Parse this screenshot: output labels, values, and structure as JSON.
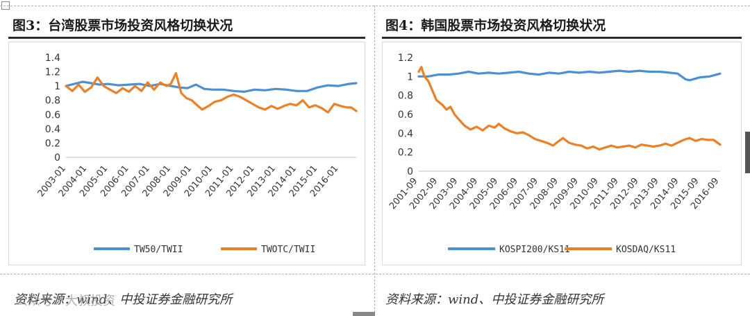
{
  "page": {
    "watermark": "公众号：大叔投资",
    "panels": [
      {
        "title": "图3：台湾股票市场投资风格切换状况",
        "source": "资料来源：wind、中投证券金融研究所"
      },
      {
        "title": "图4：韩国股票市场投资风格切换状况",
        "source": "资料来源：wind、中投证券金融研究所"
      }
    ]
  },
  "colors": {
    "blue": "#4A90D9",
    "orange": "#F07F22"
  },
  "chart_data": [
    {
      "type": "line",
      "title": "图3：台湾股票市场投资风格切换状况",
      "x": [
        "2003-01",
        "2004-01",
        "2005-01",
        "2006-01",
        "2007-01",
        "2008-01",
        "2009-01",
        "2010-01",
        "2011-01",
        "2012-01",
        "2013-01",
        "2014-01",
        "2015-01",
        "2016-01"
      ],
      "x_range": [
        2003.0,
        2016.85
      ],
      "ylim": [
        0,
        1.4
      ],
      "yticks": [
        0,
        0.2,
        0.4,
        0.6,
        0.8,
        1,
        1.2,
        1.4
      ],
      "ytick_labels": [
        "0",
        "0.2",
        "0.4",
        "0.6",
        "0.8",
        "1",
        "1.2",
        "1.4"
      ],
      "grid": false,
      "legend": "bottom",
      "series": [
        {
          "name": "TW50/TWII",
          "color": "#4A90D9",
          "points": [
            [
              2003.0,
              1.0
            ],
            [
              2003.4,
              1.03
            ],
            [
              2003.8,
              1.06
            ],
            [
              2004.2,
              1.04
            ],
            [
              2004.6,
              1.02
            ],
            [
              2005.0,
              1.03
            ],
            [
              2005.5,
              1.01
            ],
            [
              2006.0,
              1.02
            ],
            [
              2006.5,
              1.03
            ],
            [
              2007.0,
              1.0
            ],
            [
              2007.5,
              1.03
            ],
            [
              2008.0,
              1.0
            ],
            [
              2008.4,
              0.98
            ],
            [
              2008.8,
              0.97
            ],
            [
              2009.2,
              1.02
            ],
            [
              2009.6,
              0.96
            ],
            [
              2010.0,
              0.95
            ],
            [
              2010.5,
              0.95
            ],
            [
              2011.0,
              0.93
            ],
            [
              2011.5,
              0.92
            ],
            [
              2012.0,
              0.95
            ],
            [
              2012.5,
              0.94
            ],
            [
              2013.0,
              0.96
            ],
            [
              2013.5,
              0.95
            ],
            [
              2014.0,
              0.93
            ],
            [
              2014.5,
              0.93
            ],
            [
              2015.0,
              0.98
            ],
            [
              2015.5,
              1.01
            ],
            [
              2016.0,
              1.0
            ],
            [
              2016.5,
              1.03
            ],
            [
              2016.85,
              1.04
            ]
          ]
        },
        {
          "name": "TWOTC/TWII",
          "color": "#F07F22",
          "points": [
            [
              2003.0,
              1.0
            ],
            [
              2003.3,
              0.93
            ],
            [
              2003.6,
              1.02
            ],
            [
              2003.9,
              0.92
            ],
            [
              2004.2,
              0.98
            ],
            [
              2004.5,
              1.12
            ],
            [
              2004.8,
              1.0
            ],
            [
              2005.1,
              0.95
            ],
            [
              2005.4,
              0.9
            ],
            [
              2005.7,
              0.97
            ],
            [
              2006.0,
              0.92
            ],
            [
              2006.3,
              1.0
            ],
            [
              2006.6,
              0.93
            ],
            [
              2006.9,
              1.05
            ],
            [
              2007.2,
              0.95
            ],
            [
              2007.5,
              1.05
            ],
            [
              2007.8,
              1.0
            ],
            [
              2008.0,
              1.03
            ],
            [
              2008.25,
              1.18
            ],
            [
              2008.5,
              0.9
            ],
            [
              2008.75,
              0.83
            ],
            [
              2009.0,
              0.8
            ],
            [
              2009.3,
              0.72
            ],
            [
              2009.5,
              0.67
            ],
            [
              2009.8,
              0.72
            ],
            [
              2010.1,
              0.78
            ],
            [
              2010.4,
              0.8
            ],
            [
              2010.7,
              0.85
            ],
            [
              2011.0,
              0.88
            ],
            [
              2011.3,
              0.85
            ],
            [
              2011.6,
              0.8
            ],
            [
              2011.9,
              0.75
            ],
            [
              2012.2,
              0.7
            ],
            [
              2012.5,
              0.67
            ],
            [
              2012.8,
              0.72
            ],
            [
              2013.1,
              0.68
            ],
            [
              2013.4,
              0.72
            ],
            [
              2013.7,
              0.75
            ],
            [
              2014.0,
              0.73
            ],
            [
              2014.3,
              0.8
            ],
            [
              2014.6,
              0.7
            ],
            [
              2014.9,
              0.73
            ],
            [
              2015.2,
              0.69
            ],
            [
              2015.5,
              0.63
            ],
            [
              2015.8,
              0.75
            ],
            [
              2016.1,
              0.72
            ],
            [
              2016.4,
              0.7
            ],
            [
              2016.6,
              0.7
            ],
            [
              2016.85,
              0.65
            ]
          ]
        }
      ]
    },
    {
      "type": "line",
      "title": "图4：韩国股票市场投资风格切换状况",
      "x": [
        "2001-09",
        "2002-09",
        "2003-09",
        "2004-09",
        "2005-09",
        "2006-09",
        "2007-09",
        "2008-09",
        "2009-09",
        "2010-09",
        "2011-09",
        "2012-09",
        "2013-09",
        "2014-09",
        "2015-09",
        "2016-09"
      ],
      "x_range": [
        2001.72,
        2016.72
      ],
      "ylim": [
        0,
        1.2
      ],
      "yticks": [
        0,
        0.2,
        0.4,
        0.6,
        0.8,
        1,
        1.2
      ],
      "ytick_labels": [
        "0",
        "0.2",
        "0.4",
        "0.6",
        "0.8",
        "1",
        "1.2"
      ],
      "grid": false,
      "legend": "bottom",
      "series": [
        {
          "name": "KOSPI200/KS11",
          "color": "#4A90D9",
          "points": [
            [
              2001.72,
              1.0
            ],
            [
              2002.2,
              1.0
            ],
            [
              2002.7,
              1.02
            ],
            [
              2003.2,
              1.02
            ],
            [
              2003.7,
              1.03
            ],
            [
              2004.2,
              1.05
            ],
            [
              2004.7,
              1.03
            ],
            [
              2005.2,
              1.04
            ],
            [
              2005.7,
              1.03
            ],
            [
              2006.2,
              1.04
            ],
            [
              2006.7,
              1.05
            ],
            [
              2007.2,
              1.03
            ],
            [
              2007.7,
              1.02
            ],
            [
              2008.2,
              1.04
            ],
            [
              2008.7,
              1.03
            ],
            [
              2009.2,
              1.05
            ],
            [
              2009.7,
              1.04
            ],
            [
              2010.2,
              1.05
            ],
            [
              2010.7,
              1.04
            ],
            [
              2011.2,
              1.05
            ],
            [
              2011.7,
              1.06
            ],
            [
              2012.2,
              1.05
            ],
            [
              2012.7,
              1.06
            ],
            [
              2013.2,
              1.05
            ],
            [
              2013.7,
              1.05
            ],
            [
              2014.2,
              1.04
            ],
            [
              2014.6,
              1.03
            ],
            [
              2015.0,
              0.97
            ],
            [
              2015.2,
              0.96
            ],
            [
              2015.7,
              0.99
            ],
            [
              2016.2,
              1.0
            ],
            [
              2016.72,
              1.03
            ]
          ]
        },
        {
          "name": "KOSDAQ/KS11",
          "color": "#F07F22",
          "points": [
            [
              2001.72,
              1.05
            ],
            [
              2001.85,
              1.1
            ],
            [
              2002.0,
              1.0
            ],
            [
              2002.2,
              0.95
            ],
            [
              2002.4,
              0.85
            ],
            [
              2002.6,
              0.75
            ],
            [
              2002.9,
              0.7
            ],
            [
              2003.1,
              0.65
            ],
            [
              2003.3,
              0.68
            ],
            [
              2003.5,
              0.6
            ],
            [
              2003.7,
              0.55
            ],
            [
              2004.0,
              0.48
            ],
            [
              2004.3,
              0.44
            ],
            [
              2004.6,
              0.47
            ],
            [
              2004.9,
              0.43
            ],
            [
              2005.2,
              0.48
            ],
            [
              2005.5,
              0.46
            ],
            [
              2005.7,
              0.5
            ],
            [
              2006.0,
              0.45
            ],
            [
              2006.3,
              0.42
            ],
            [
              2006.6,
              0.4
            ],
            [
              2006.9,
              0.41
            ],
            [
              2007.2,
              0.38
            ],
            [
              2007.5,
              0.34
            ],
            [
              2007.8,
              0.32
            ],
            [
              2008.1,
              0.3
            ],
            [
              2008.4,
              0.27
            ],
            [
              2008.7,
              0.32
            ],
            [
              2008.9,
              0.35
            ],
            [
              2009.2,
              0.3
            ],
            [
              2009.5,
              0.28
            ],
            [
              2009.8,
              0.27
            ],
            [
              2010.1,
              0.24
            ],
            [
              2010.4,
              0.26
            ],
            [
              2010.7,
              0.23
            ],
            [
              2011.0,
              0.25
            ],
            [
              2011.3,
              0.27
            ],
            [
              2011.6,
              0.25
            ],
            [
              2011.9,
              0.26
            ],
            [
              2012.2,
              0.27
            ],
            [
              2012.5,
              0.25
            ],
            [
              2012.8,
              0.28
            ],
            [
              2013.1,
              0.27
            ],
            [
              2013.4,
              0.26
            ],
            [
              2013.7,
              0.27
            ],
            [
              2014.0,
              0.29
            ],
            [
              2014.3,
              0.27
            ],
            [
              2014.6,
              0.3
            ],
            [
              2014.9,
              0.33
            ],
            [
              2015.2,
              0.35
            ],
            [
              2015.5,
              0.32
            ],
            [
              2015.8,
              0.34
            ],
            [
              2016.1,
              0.33
            ],
            [
              2016.4,
              0.33
            ],
            [
              2016.72,
              0.28
            ]
          ]
        }
      ]
    }
  ]
}
